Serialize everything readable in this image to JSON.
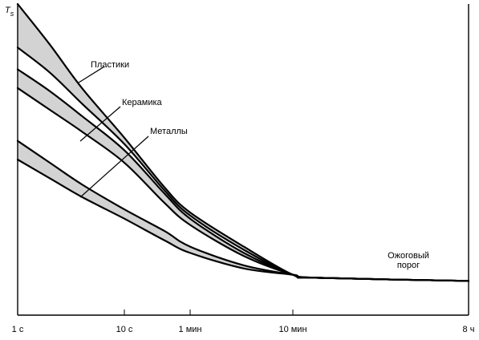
{
  "chart_data": {
    "type": "line",
    "ylabel": "T",
    "ylabel_sub": "s",
    "x_ticks": [
      "1 с",
      "10 с",
      "1 мин",
      "10 мин",
      "8 ч"
    ],
    "x_tick_seconds": [
      1,
      10,
      60,
      600,
      28800
    ],
    "xscale": "log",
    "y_axis_has_ticks": false,
    "grid": false,
    "colors": {
      "band": "#d3d3d3",
      "line": "#000000"
    },
    "series": [
      {
        "name": "Пластики",
        "upper": [
          [
            1,
            1.0
          ],
          [
            2,
            0.87
          ],
          [
            4,
            0.73
          ],
          [
            10,
            0.57
          ],
          [
            30,
            0.41
          ],
          [
            60,
            0.33
          ],
          [
            200,
            0.22
          ],
          [
            600,
            0.13
          ],
          [
            1000,
            0.12
          ],
          [
            28800,
            0.11
          ]
        ],
        "lower": [
          [
            1,
            0.86
          ],
          [
            2,
            0.78
          ],
          [
            4,
            0.68
          ],
          [
            10,
            0.55
          ],
          [
            30,
            0.4
          ],
          [
            60,
            0.32
          ],
          [
            200,
            0.21
          ],
          [
            600,
            0.13
          ],
          [
            1000,
            0.12
          ],
          [
            28800,
            0.11
          ]
        ]
      },
      {
        "name": "Керамика",
        "upper": [
          [
            1,
            0.79
          ],
          [
            2,
            0.72
          ],
          [
            4,
            0.64
          ],
          [
            10,
            0.53
          ],
          [
            30,
            0.39
          ],
          [
            60,
            0.31
          ],
          [
            200,
            0.2
          ],
          [
            600,
            0.13
          ],
          [
            1000,
            0.12
          ],
          [
            28800,
            0.11
          ]
        ],
        "lower": [
          [
            1,
            0.73
          ],
          [
            2,
            0.66
          ],
          [
            4,
            0.59
          ],
          [
            10,
            0.49
          ],
          [
            30,
            0.36
          ],
          [
            60,
            0.29
          ],
          [
            200,
            0.19
          ],
          [
            600,
            0.13
          ],
          [
            1000,
            0.12
          ],
          [
            28800,
            0.11
          ]
        ]
      },
      {
        "name": "Металлы",
        "upper": [
          [
            1,
            0.56
          ],
          [
            2,
            0.49
          ],
          [
            4,
            0.42
          ],
          [
            10,
            0.34
          ],
          [
            30,
            0.27
          ],
          [
            60,
            0.22
          ],
          [
            200,
            0.16
          ],
          [
            600,
            0.13
          ],
          [
            1000,
            0.12
          ],
          [
            28800,
            0.11
          ]
        ],
        "lower": [
          [
            1,
            0.5
          ],
          [
            2,
            0.44
          ],
          [
            4,
            0.38
          ],
          [
            10,
            0.31
          ],
          [
            30,
            0.24
          ],
          [
            60,
            0.2
          ],
          [
            200,
            0.15
          ],
          [
            600,
            0.13
          ],
          [
            1000,
            0.12
          ],
          [
            28800,
            0.11
          ]
        ]
      }
    ],
    "annotations": [
      {
        "text": "Пластики"
      },
      {
        "text": "Керамика"
      },
      {
        "text": "Металлы"
      },
      {
        "text": [
          "Ожоговый",
          "порог"
        ]
      }
    ]
  }
}
